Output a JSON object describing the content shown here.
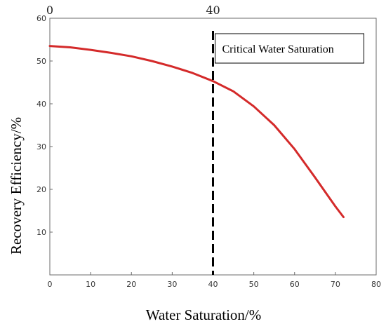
{
  "chart_data": {
    "type": "line",
    "xlabel": "Water Saturation/%",
    "ylabel": "Recovery Efficiency/%",
    "xlim": [
      0,
      80
    ],
    "ylim": [
      0,
      60
    ],
    "x_ticks": [
      "0",
      "10",
      "20",
      "30",
      "40",
      "50",
      "60",
      "70",
      "80"
    ],
    "y_ticks": [
      "10",
      "20",
      "30",
      "40",
      "50",
      "60"
    ],
    "grid": false,
    "series": [
      {
        "color": "#d42a2a",
        "x": [
          0,
          5,
          10,
          15,
          20,
          25,
          30,
          35,
          40,
          45,
          50,
          55,
          60,
          65,
          70,
          72
        ],
        "y": [
          53.5,
          53.2,
          52.6,
          51.9,
          51.1,
          50.0,
          48.7,
          47.2,
          45.3,
          42.9,
          39.4,
          35.0,
          29.4,
          22.8,
          16.0,
          13.5
        ]
      }
    ],
    "critical_line": {
      "x": 40,
      "style": "dashed",
      "color": "#000000"
    },
    "top_axis_labels": [
      {
        "x": 0,
        "text": "0"
      },
      {
        "x": 40,
        "text": "40"
      }
    ],
    "annotation": {
      "text": "Critical Water Saturation"
    }
  }
}
